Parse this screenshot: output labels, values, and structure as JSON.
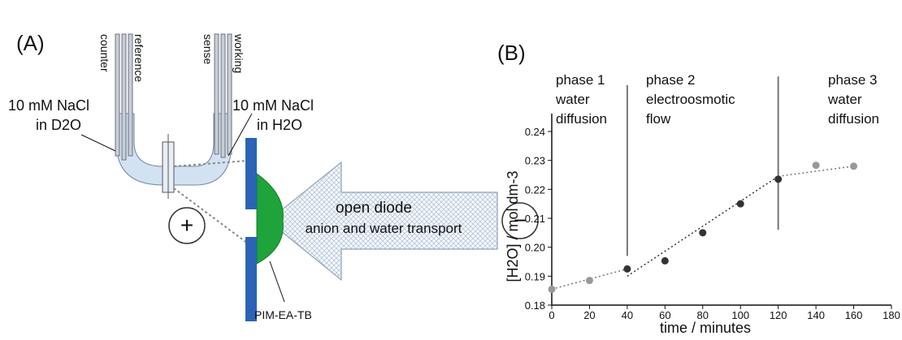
{
  "diagram": {
    "panel_label": "(A)",
    "electrodes": [
      "counter",
      "reference",
      "sense",
      "working"
    ],
    "left_solution": [
      "10 mM NaCl",
      "in D2O"
    ],
    "right_solution": [
      "10 mM NaCl",
      "in H2O"
    ],
    "plus": "+",
    "minus": "−",
    "arrow_text": [
      "open diode",
      "anion and water transport"
    ],
    "membrane": "PIM-EA-TB"
  },
  "chart_data": {
    "type": "scatter",
    "panel_label": "(B)",
    "xlabel": "time / minutes",
    "ylabel": "[H2O] / mol dm-3",
    "xlim": [
      0,
      180
    ],
    "xticks": [
      0,
      20,
      40,
      60,
      80,
      100,
      120,
      140,
      160,
      180
    ],
    "ylim": [
      0.18,
      0.24
    ],
    "yticks": [
      0.18,
      0.19,
      {
        "value": 0.2,
        "label": "0.20"
      },
      0.21,
      0.22,
      0.23,
      0.24
    ],
    "series": [
      {
        "color": "#999999",
        "x": [
          0,
          20,
          140,
          160
        ],
        "values": [
          0.1855,
          0.1885,
          0.2283,
          0.228
        ]
      },
      {
        "color": "#333333",
        "x": [
          40,
          60,
          80,
          100,
          120
        ],
        "values": [
          0.1925,
          0.1953,
          0.205,
          0.215,
          0.2235
        ]
      }
    ],
    "fits": [
      {
        "color": "#777777",
        "x": [
          0,
          40
        ],
        "values": [
          0.1855,
          0.1925
        ]
      },
      {
        "color": "#333333",
        "x": [
          40,
          120
        ],
        "values": [
          0.19,
          0.2245
        ]
      },
      {
        "color": "#777777",
        "x": [
          120,
          160
        ],
        "values": [
          0.2245,
          0.228
        ]
      }
    ],
    "phase_lines": [
      {
        "x": 40,
        "y": [
          0.197,
          0.256
        ]
      },
      {
        "x": 120,
        "y": [
          0.206,
          0.259
        ]
      }
    ],
    "phases": [
      [
        "phase 1",
        "water",
        "diffusion"
      ],
      [
        "phase 2",
        "electroosmotic",
        "flow"
      ],
      [
        "phase 3",
        "water",
        "diffusion"
      ]
    ]
  }
}
